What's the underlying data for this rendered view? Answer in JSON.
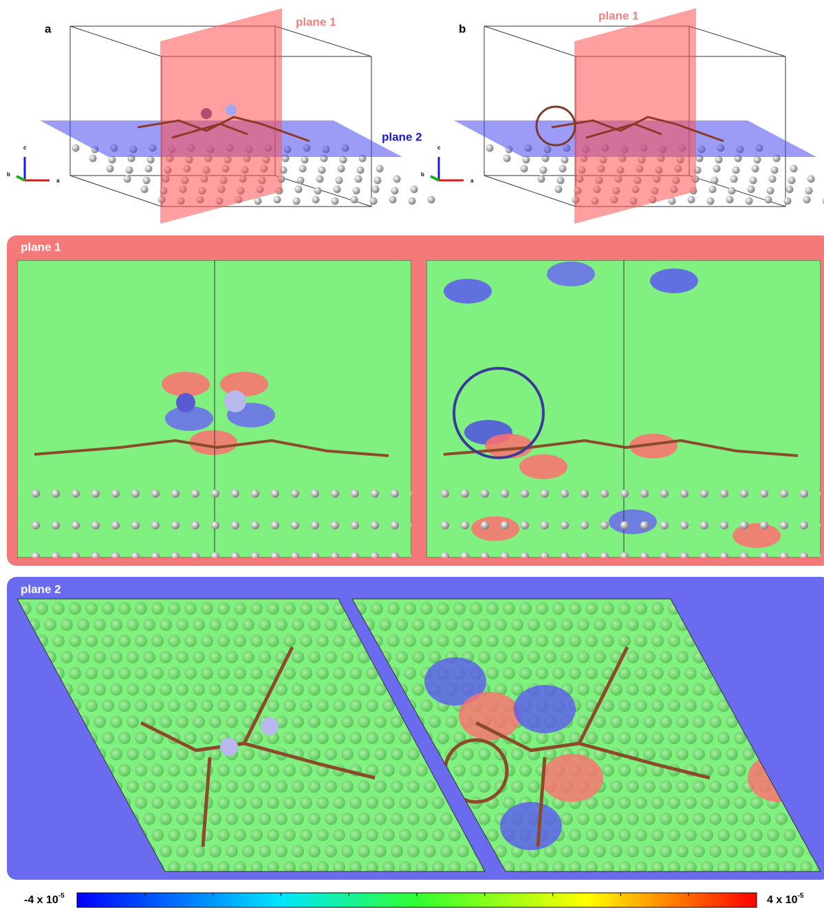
{
  "panels": [
    {
      "label": "a",
      "plane1": "plane 1",
      "plane2": "plane 2",
      "axes": {
        "c": "c",
        "b": "b",
        "a": "a"
      }
    },
    {
      "label": "b",
      "plane1": "plane 1",
      "axes": {
        "c": "c",
        "b": "b",
        "a": "a"
      }
    }
  ],
  "sections": [
    {
      "label": "plane 1"
    },
    {
      "label": "plane 2"
    }
  ],
  "colorbar": {
    "min": {
      "base": "-4 x 10",
      "exponent": "-5"
    },
    "max": {
      "base": "4 x 10",
      "exponent": "-5"
    }
  }
}
